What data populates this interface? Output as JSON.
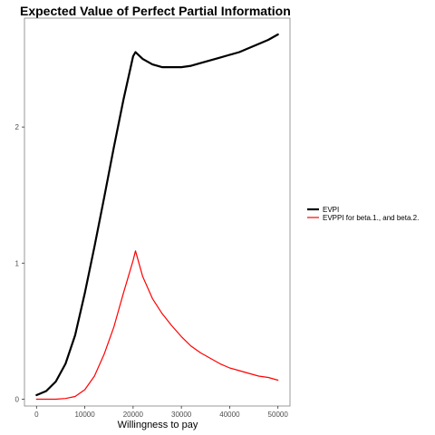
{
  "chart_data": {
    "type": "line",
    "title": "Expected Value of Perfect Partial Information",
    "xlabel": "Willingness to pay",
    "ylabel": "",
    "xlim": [
      -2500,
      52500
    ],
    "ylim": [
      -0.05,
      2.8
    ],
    "x_ticks": [
      0,
      10000,
      20000,
      30000,
      40000,
      50000
    ],
    "x_tick_labels": [
      "0",
      "10000",
      "20000",
      "30000",
      "40000",
      "50000"
    ],
    "y_ticks": [
      0,
      1,
      2
    ],
    "y_tick_labels": [
      "0",
      "1",
      "2"
    ],
    "grid": false,
    "legend_position": "right",
    "series": [
      {
        "name": "EVPI",
        "color": "#000000",
        "x": [
          0,
          2000,
          4000,
          6000,
          8000,
          10000,
          12000,
          14000,
          16000,
          18000,
          20000,
          20500,
          22000,
          24000,
          26000,
          28000,
          30000,
          32000,
          34000,
          36000,
          38000,
          40000,
          42000,
          44000,
          46000,
          48000,
          50000
        ],
        "values": [
          0.03,
          0.06,
          0.13,
          0.26,
          0.47,
          0.78,
          1.12,
          1.48,
          1.85,
          2.2,
          2.52,
          2.55,
          2.5,
          2.46,
          2.44,
          2.44,
          2.44,
          2.45,
          2.47,
          2.49,
          2.51,
          2.53,
          2.55,
          2.58,
          2.61,
          2.64,
          2.68
        ]
      },
      {
        "name": "EVPPI for beta.1. and beta.2.",
        "color": "#ff0000",
        "x": [
          0,
          2000,
          4000,
          6000,
          8000,
          10000,
          12000,
          14000,
          16000,
          18000,
          20000,
          20500,
          22000,
          24000,
          26000,
          28000,
          30000,
          32000,
          34000,
          36000,
          38000,
          40000,
          42000,
          44000,
          46000,
          48000,
          50000
        ],
        "values": [
          0.0,
          0.0,
          0.0,
          0.005,
          0.02,
          0.07,
          0.17,
          0.33,
          0.53,
          0.78,
          1.02,
          1.09,
          0.9,
          0.74,
          0.63,
          0.54,
          0.46,
          0.39,
          0.34,
          0.3,
          0.26,
          0.23,
          0.21,
          0.19,
          0.17,
          0.16,
          0.14
        ]
      }
    ],
    "legend_labels": [
      "EVPI",
      "EVPPI for beta.1., and beta.2."
    ]
  }
}
